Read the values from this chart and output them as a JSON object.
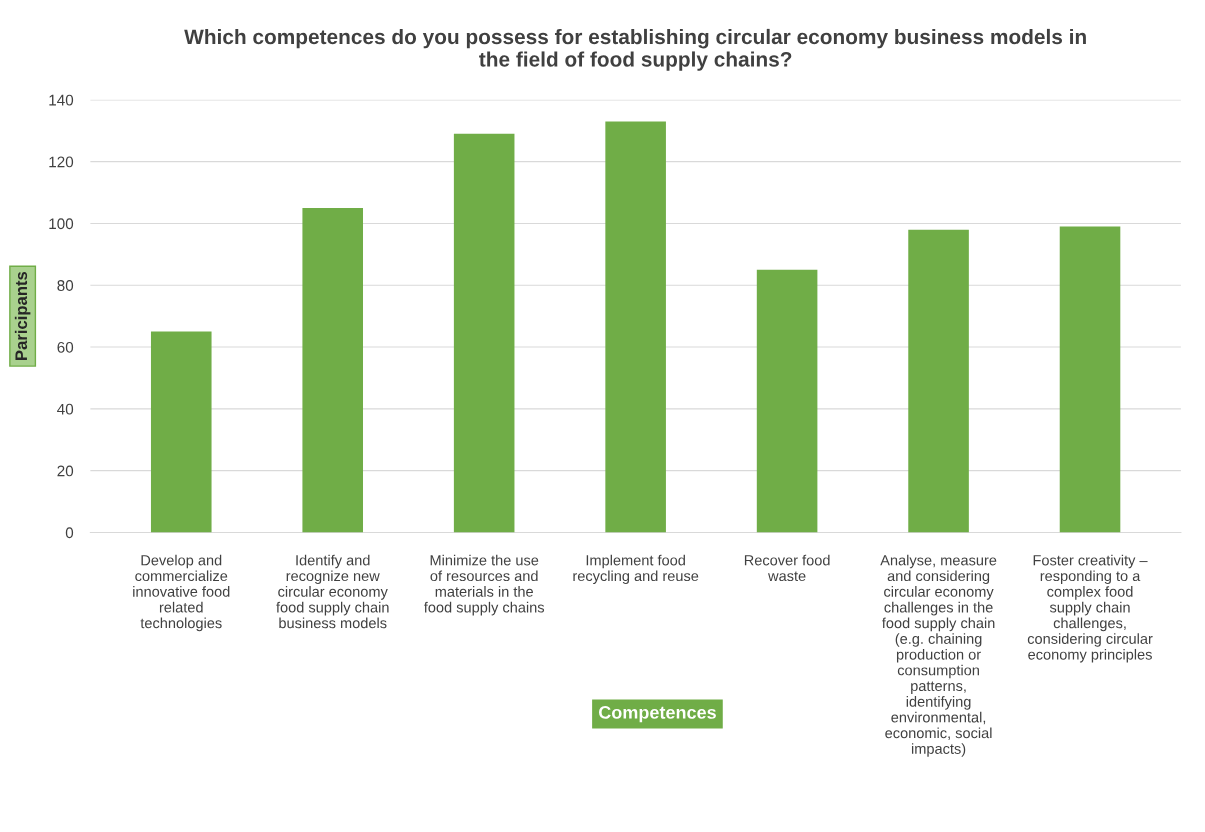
{
  "chart_data": {
    "type": "bar",
    "title": "Which competences do you possess for establishing circular economy business models in\nthe field of food supply chains?",
    "xlabel": "Competences",
    "ylabel": "Paricipants",
    "categories": [
      "Develop and\ncommercialize\ninnovative food\nrelated\ntechnologies",
      "Identify and\nrecognize new\ncircular economy\nfood supply chain\nbusiness models",
      "Minimize the use\nof resources and\nmaterials in the\nfood supply chains",
      "Implement food\nrecycling and reuse",
      "Recover food\nwaste",
      "Analyse, measure\nand considering\ncircular economy\nchallenges in the\nfood supply chain\n(e.g. chaining\nproduction or\nconsumption\npatterns,\nidentifying\nenvironmental,\neconomic, social\nimpacts)",
      "Foster creativity –\nresponding to a\ncomplex food\nsupply chain\nchallenges,\nconsidering circular\neconomy principles"
    ],
    "values": [
      65,
      105,
      129,
      133,
      85,
      98,
      99
    ],
    "color": "#70ad47",
    "ylim": [
      0,
      140
    ],
    "yticks": [
      0,
      20,
      40,
      60,
      80,
      100,
      120,
      140
    ],
    "grid": "y"
  }
}
